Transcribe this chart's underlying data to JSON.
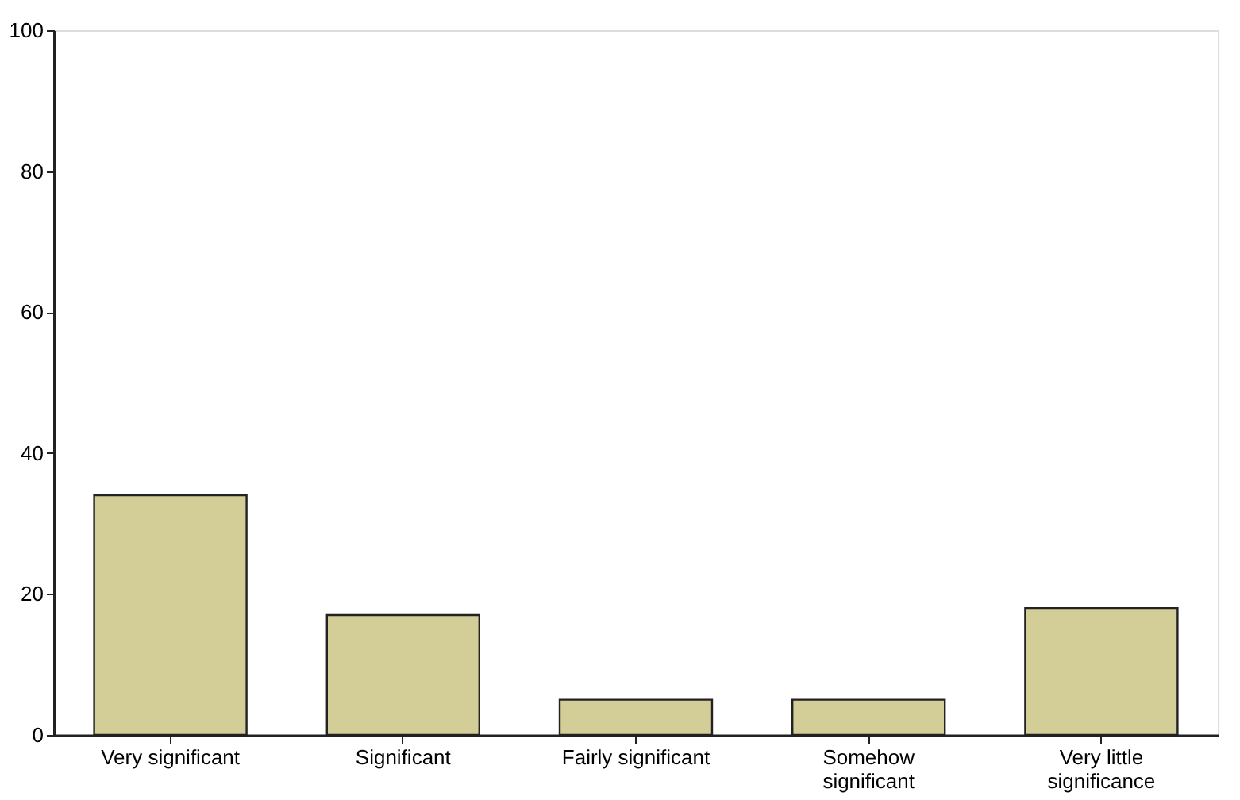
{
  "chart_data": {
    "type": "bar",
    "categories": [
      "Very significant",
      "Significant",
      "Fairly significant",
      "Somehow significant",
      "Very little significance"
    ],
    "values": [
      34,
      17,
      5,
      5,
      18
    ],
    "color": "#d3cd98",
    "ylim": [
      0,
      100
    ],
    "yticks": [
      0,
      20,
      40,
      60,
      80,
      100
    ],
    "grid": false
  }
}
